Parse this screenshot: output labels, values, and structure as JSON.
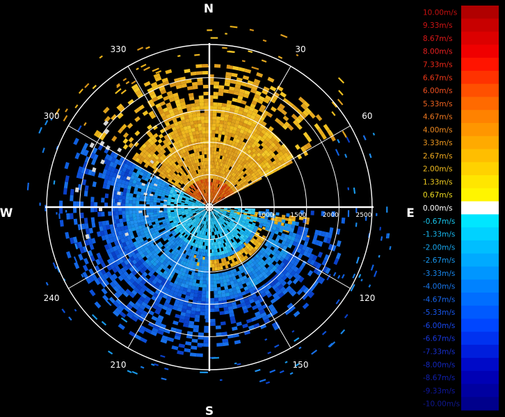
{
  "cardinals": {
    "north": "N",
    "south": "S",
    "east": "E",
    "west": "W"
  },
  "azimuth_labels": [
    {
      "az": 30,
      "text": "30"
    },
    {
      "az": 60,
      "text": "60"
    },
    {
      "az": 120,
      "text": "120"
    },
    {
      "az": 150,
      "text": "150"
    },
    {
      "az": 210,
      "text": "210"
    },
    {
      "az": 240,
      "text": "240"
    },
    {
      "az": 300,
      "text": "300"
    },
    {
      "az": 330,
      "text": "330"
    }
  ],
  "range_rings": [
    "500",
    "1000",
    "1500",
    "2000",
    "2500"
  ],
  "range_label_visible": [
    "1000",
    "1500",
    "2000",
    "2500"
  ],
  "legend": {
    "entries": [
      {
        "label": "10.00m/s",
        "color": "#b00000",
        "text_color": "#c81010"
      },
      {
        "label": "9.33m/s",
        "color": "#c80000",
        "text_color": "#d01414"
      },
      {
        "label": "8.67m/s",
        "color": "#dc0000",
        "text_color": "#dc1818"
      },
      {
        "label": "8.00m/s",
        "color": "#f00000",
        "text_color": "#e82020"
      },
      {
        "label": "7.33m/s",
        "color": "#ff1400",
        "text_color": "#f02818"
      },
      {
        "label": "6.67m/s",
        "color": "#ff3200",
        "text_color": "#f03818"
      },
      {
        "label": "6.00m/s",
        "color": "#ff5000",
        "text_color": "#f05020"
      },
      {
        "label": "5.33m/s",
        "color": "#ff6a00",
        "text_color": "#f06420"
      },
      {
        "label": "4.67m/s",
        "color": "#ff8200",
        "text_color": "#f07820"
      },
      {
        "label": "4.00m/s",
        "color": "#ff9600",
        "text_color": "#f08a20"
      },
      {
        "label": "3.33m/s",
        "color": "#ffaa00",
        "text_color": "#f09a20"
      },
      {
        "label": "2.67m/s",
        "color": "#ffbe00",
        "text_color": "#f0aa20"
      },
      {
        "label": "2.00m/s",
        "color": "#ffd200",
        "text_color": "#f0bc20"
      },
      {
        "label": "1.33m/s",
        "color": "#ffe600",
        "text_color": "#f0cc20"
      },
      {
        "label": "0.67m/s",
        "color": "#fff500",
        "text_color": "#f0dc20"
      },
      {
        "label": "0.00m/s",
        "color": "#ffffff",
        "text_color": "#ffffff"
      },
      {
        "label": "-0.67m/s",
        "color": "#00e6ff",
        "text_color": "#18c8f0"
      },
      {
        "label": "-1.33m/s",
        "color": "#00d2ff",
        "text_color": "#18b8f0"
      },
      {
        "label": "-2.00m/s",
        "color": "#00beff",
        "text_color": "#18a8f0"
      },
      {
        "label": "-2.67m/s",
        "color": "#00aaff",
        "text_color": "#1898f0"
      },
      {
        "label": "-3.33m/s",
        "color": "#0096ff",
        "text_color": "#1888f0"
      },
      {
        "label": "-4.00m/s",
        "color": "#0082ff",
        "text_color": "#1878f0"
      },
      {
        "label": "-4.67m/s",
        "color": "#006eff",
        "text_color": "#1868f0"
      },
      {
        "label": "-5.33m/s",
        "color": "#005aff",
        "text_color": "#1858f0"
      },
      {
        "label": "-6.00m/s",
        "color": "#0046ff",
        "text_color": "#1848f0"
      },
      {
        "label": "-6.67m/s",
        "color": "#0032f0",
        "text_color": "#1838e0"
      },
      {
        "label": "-7.33m/s",
        "color": "#001edc",
        "text_color": "#1830d0"
      },
      {
        "label": "-8.00m/s",
        "color": "#000ac8",
        "text_color": "#1428c0"
      },
      {
        "label": "-8.67m/s",
        "color": "#0000b4",
        "text_color": "#1020b0"
      },
      {
        "label": "-9.33m/s",
        "color": "#0000a0",
        "text_color": "#1018a0"
      },
      {
        "label": "-10.00m/s",
        "color": "#00008c",
        "text_color": "#101890"
      }
    ]
  },
  "colors": {
    "background": "#000000",
    "grid": "#ffffff",
    "warm_core": "#e0a020",
    "warm_outer": "#f0c020",
    "cool_inner": "#20b8f0",
    "cool_outer": "#1878e0"
  }
}
